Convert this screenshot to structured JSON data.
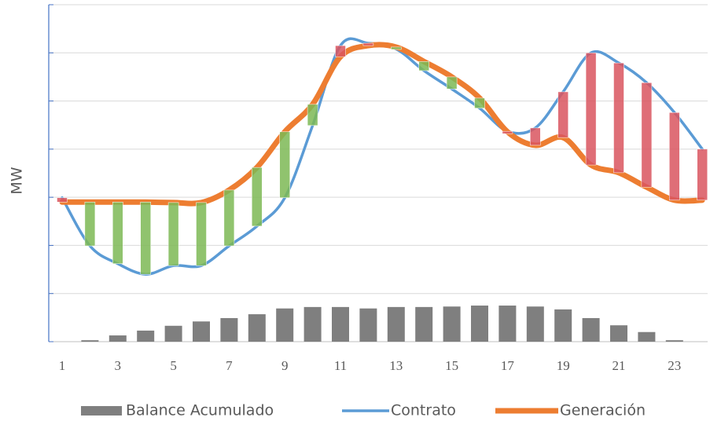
{
  "chart_data": {
    "type": "combo",
    "ylabel": "MW",
    "categories": [
      "1",
      null,
      "3",
      null,
      "5",
      null,
      "7",
      null,
      "9",
      null,
      "11",
      null,
      "13",
      null,
      "15",
      null,
      "17",
      null,
      "19",
      null,
      "21",
      null,
      "23",
      null
    ],
    "ylim": [
      0,
      7
    ],
    "yticks": [
      0,
      1,
      2,
      3,
      4,
      5,
      6,
      7
    ],
    "grid": true,
    "surplus_color": "#7cb955",
    "deficit_color": "#d9555f",
    "series": [
      {
        "name": "Balance Acumulado",
        "kind": "bar",
        "color": "#7f7f7f",
        "values": [
          0,
          0.03,
          0.13,
          0.23,
          0.33,
          0.42,
          0.49,
          0.57,
          0.69,
          0.72,
          0.72,
          0.69,
          0.72,
          0.72,
          0.73,
          0.75,
          0.75,
          0.73,
          0.67,
          0.49,
          0.34,
          0.2,
          0.03,
          0
        ]
      },
      {
        "name": "Contrato",
        "kind": "line",
        "color": "#5b9bd5",
        "values": [
          2.99,
          1.99,
          1.62,
          1.4,
          1.58,
          1.58,
          1.99,
          2.4,
          2.99,
          4.49,
          6.15,
          6.2,
          6.08,
          5.63,
          5.25,
          4.85,
          4.37,
          4.44,
          5.19,
          6.0,
          5.79,
          5.38,
          4.76,
          4.0
        ]
      },
      {
        "name": "Generación",
        "kind": "line",
        "color": "#ed7d31",
        "values": [
          2.9,
          2.9,
          2.9,
          2.9,
          2.89,
          2.89,
          3.15,
          3.62,
          4.36,
          4.93,
          5.92,
          6.15,
          6.12,
          5.82,
          5.5,
          5.06,
          4.36,
          4.08,
          4.24,
          3.67,
          3.51,
          3.21,
          2.94,
          2.94
        ]
      }
    ]
  }
}
